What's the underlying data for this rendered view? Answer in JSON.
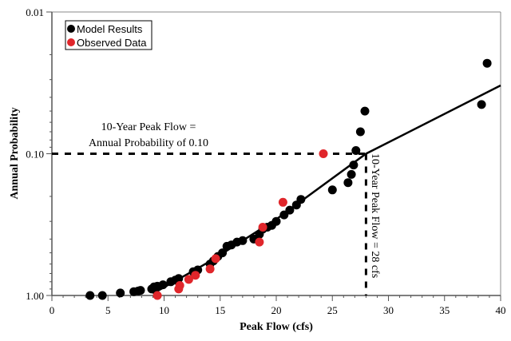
{
  "chart_data": {
    "type": "scatter",
    "title": "",
    "xlabel": "Peak Flow (cfs)",
    "ylabel": "Annual Probability",
    "xlim": [
      0,
      40
    ],
    "ylim": [
      1.0,
      0.01
    ],
    "yscale": "log-reversed",
    "x_ticks": [
      "0",
      "5",
      "10",
      "15",
      "20",
      "25",
      "30",
      "35",
      "40"
    ],
    "y_ticks": [
      "0.01",
      "0.10",
      "1.00"
    ],
    "grid": false,
    "legend_position": "top-left",
    "series": [
      {
        "name": "Model Results",
        "color": "#000000",
        "points": [
          [
            3.4,
            1.0
          ],
          [
            4.5,
            1.0
          ],
          [
            6.1,
            0.96
          ],
          [
            7.3,
            0.94
          ],
          [
            7.7,
            0.93
          ],
          [
            7.9,
            0.92
          ],
          [
            8.9,
            0.9
          ],
          [
            9.1,
            0.87
          ],
          [
            9.4,
            0.86
          ],
          [
            9.9,
            0.84
          ],
          [
            10.6,
            0.8
          ],
          [
            11.0,
            0.78
          ],
          [
            11.3,
            0.76
          ],
          [
            12.6,
            0.68
          ],
          [
            13.0,
            0.66
          ],
          [
            14.1,
            0.6
          ],
          [
            14.4,
            0.57
          ],
          [
            14.8,
            0.53
          ],
          [
            15.2,
            0.5
          ],
          [
            15.6,
            0.45
          ],
          [
            16.0,
            0.44
          ],
          [
            16.5,
            0.42
          ],
          [
            17.0,
            0.41
          ],
          [
            18.0,
            0.4
          ],
          [
            18.5,
            0.37
          ],
          [
            18.8,
            0.34
          ],
          [
            19.2,
            0.33
          ],
          [
            19.6,
            0.32
          ],
          [
            20.0,
            0.3
          ],
          [
            20.7,
            0.27
          ],
          [
            21.2,
            0.25
          ],
          [
            21.8,
            0.23
          ],
          [
            22.2,
            0.21
          ],
          [
            25.0,
            0.18
          ],
          [
            26.4,
            0.16
          ],
          [
            26.7,
            0.14
          ],
          [
            26.9,
            0.12
          ],
          [
            27.1,
            0.095
          ],
          [
            27.5,
            0.07
          ],
          [
            27.9,
            0.05
          ],
          [
            38.3,
            0.045
          ],
          [
            38.8,
            0.023
          ]
        ]
      },
      {
        "name": "Observed Data",
        "color": "#e0262b",
        "points": [
          [
            9.4,
            1.0
          ],
          [
            11.3,
            0.9
          ],
          [
            11.4,
            0.85
          ],
          [
            12.2,
            0.77
          ],
          [
            12.8,
            0.72
          ],
          [
            14.1,
            0.65
          ],
          [
            14.6,
            0.55
          ],
          [
            18.5,
            0.42
          ],
          [
            18.8,
            0.33
          ],
          [
            20.6,
            0.22
          ],
          [
            24.2,
            0.1
          ]
        ]
      }
    ],
    "fit_line": {
      "points": [
        [
          9.0,
          0.97
        ],
        [
          14.0,
          0.58
        ],
        [
          20.0,
          0.29
        ],
        [
          28.0,
          0.1
        ],
        [
          40.0,
          0.033
        ]
      ]
    },
    "annotations": {
      "horizontal_label_line1": "10-Year Peak Flow =",
      "horizontal_label_line2": "Annual Probability of 0.10",
      "vertical_label": "10-Year Peak Flow = 28 cfs",
      "reference_x": 28,
      "reference_y": 0.1
    }
  }
}
